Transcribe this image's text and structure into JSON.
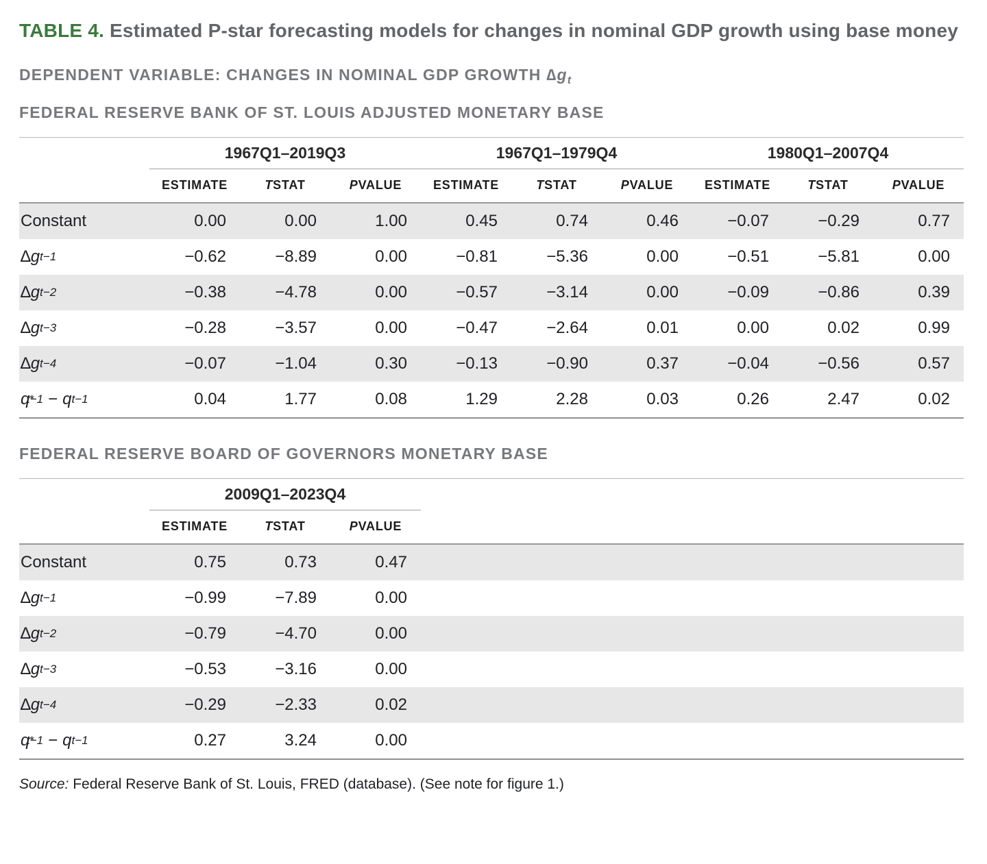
{
  "title": {
    "label": "TABLE 4.",
    "text": " Estimated P-star forecasting models for changes in nominal GDP growth using base money"
  },
  "subtitles": {
    "dependent": "DEPENDENT VARIABLE: CHANGES IN NOMINAL GDP GROWTH ",
    "dependent_symbol": {
      "delta": "∆",
      "g": "g",
      "sub": "t"
    },
    "section1": "FEDERAL RESERVE BANK OF ST. LOUIS ADJUSTED MONETARY BASE",
    "section2": "FEDERAL RESERVE BOARD OF GOVERNORS MONETARY BASE"
  },
  "headers": {
    "estimate": "ESTIMATE",
    "tstat_italic": "T",
    "tstat_rest": " STAT",
    "pvalue_italic": "P",
    "pvalue_rest": " VALUE"
  },
  "table1": {
    "periods": [
      "1967Q1–2019Q3",
      "1967Q1–1979Q4",
      "1980Q1–2007Q4"
    ],
    "rows": [
      {
        "label": {
          "text": "Constant"
        },
        "shaded": true,
        "values": [
          "0.00",
          "0.00",
          "1.00",
          "0.45",
          "0.74",
          "0.46",
          "−0.07",
          "−0.29",
          "0.77"
        ]
      },
      {
        "label": {
          "delta": "∆",
          "g": "g",
          "sub": "t−1"
        },
        "shaded": false,
        "values": [
          "−0.62",
          "−8.89",
          "0.00",
          "−0.81",
          "−5.36",
          "0.00",
          "−0.51",
          "−5.81",
          "0.00"
        ]
      },
      {
        "label": {
          "delta": "∆",
          "g": "g",
          "sub": "t−2"
        },
        "shaded": true,
        "values": [
          "−0.38",
          "−4.78",
          "0.00",
          "−0.57",
          "−3.14",
          "0.00",
          "−0.09",
          "−0.86",
          "0.39"
        ]
      },
      {
        "label": {
          "delta": "∆",
          "g": "g",
          "sub": "t−3"
        },
        "shaded": false,
        "values": [
          "−0.28",
          "−3.57",
          "0.00",
          "−0.47",
          "−2.64",
          "0.01",
          "0.00",
          "0.02",
          "0.99"
        ]
      },
      {
        "label": {
          "delta": "∆",
          "g": "g",
          "sub": "t−4"
        },
        "shaded": true,
        "values": [
          "−0.07",
          "−1.04",
          "0.30",
          "−0.13",
          "−0.90",
          "0.37",
          "−0.04",
          "−0.56",
          "0.57"
        ]
      },
      {
        "label": {
          "q1": "q",
          "star": "*",
          "sub1": "t−1",
          "minus": "−",
          "q2": "q",
          "sub2": "t−1"
        },
        "shaded": false,
        "values": [
          "0.04",
          "1.77",
          "0.08",
          "1.29",
          "2.28",
          "0.03",
          "0.26",
          "2.47",
          "0.02"
        ]
      }
    ]
  },
  "table2": {
    "periods": [
      "2009Q1–2023Q4"
    ],
    "rows": [
      {
        "label": {
          "text": "Constant"
        },
        "shaded": true,
        "values": [
          "0.75",
          "0.73",
          "0.47"
        ]
      },
      {
        "label": {
          "delta": "∆",
          "g": "g",
          "sub": "t−1"
        },
        "shaded": false,
        "values": [
          "−0.99",
          "−7.89",
          "0.00"
        ]
      },
      {
        "label": {
          "delta": "∆",
          "g": "g",
          "sub": "t−2"
        },
        "shaded": true,
        "values": [
          "−0.79",
          "−4.70",
          "0.00"
        ]
      },
      {
        "label": {
          "delta": "∆",
          "g": "g",
          "sub": "t−3"
        },
        "shaded": false,
        "values": [
          "−0.53",
          "−3.16",
          "0.00"
        ]
      },
      {
        "label": {
          "delta": "∆",
          "g": "g",
          "sub": "t−4"
        },
        "shaded": true,
        "values": [
          "−0.29",
          "−2.33",
          "0.02"
        ]
      },
      {
        "label": {
          "q1": "q",
          "star": "*",
          "sub1": "t−1",
          "minus": "−",
          "q2": "q",
          "sub2": "t−1"
        },
        "shaded": false,
        "values": [
          "0.27",
          "3.24",
          "0.00"
        ]
      }
    ]
  },
  "source": {
    "label": "Source:",
    "text": " Federal Reserve Bank of St. Louis, FRED (database). (See note for figure 1.)"
  },
  "colors": {
    "accent_green": "#3a7a3c",
    "heading_gray": "#77787b",
    "text_dark": "#231f20",
    "row_shade": "#e7e7e8"
  }
}
